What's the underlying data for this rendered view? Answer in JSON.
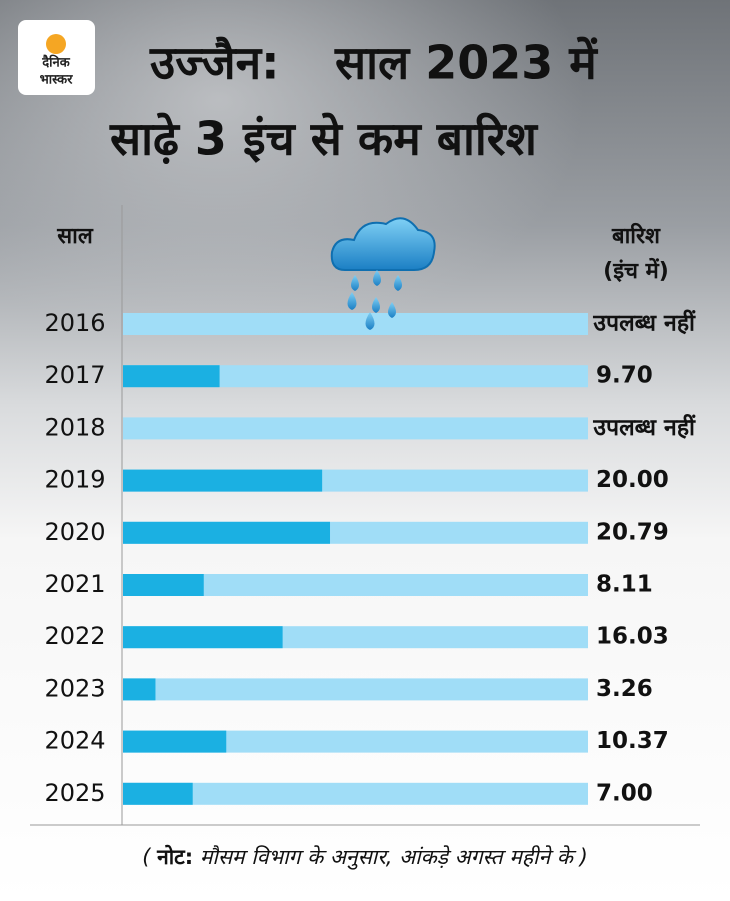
{
  "logo": [
    "दैनिक",
    "भास्कर"
  ],
  "chart_data": {
    "type": "bar",
    "orientation": "horizontal",
    "title": {
      "place": "उज्जैन:",
      "line1": "साल 2023 में",
      "line2": "साढ़े 3 इंच से कम बारिश"
    },
    "category_header": "साल",
    "value_header": [
      "बारिश",
      "(इंच में)"
    ],
    "categories": [
      "2016",
      "2017",
      "2018",
      "2019",
      "2020",
      "2021",
      "2022",
      "2023",
      "2024",
      "2025"
    ],
    "values": [
      null,
      9.7,
      null,
      20,
      20.79,
      8.11,
      16.03,
      3.26,
      10.37,
      7
    ],
    "value_labels": [
      "उपलब्ध नहीं",
      "9.70",
      "उपलब्ध नहीं",
      "20.00",
      "20.79",
      "8.11",
      "16.03",
      "3.26",
      "10.37",
      "7.00"
    ],
    "xlim": [
      0,
      46.7
    ],
    "color": "#1bb0e2",
    "track_color": "#a0ddf7",
    "title_color": "#1c8fd2",
    "note": {
      "label": "नोट:",
      "text": "मौसम विभाग के अनुसार, आंकड़े अगस्त महीने के"
    }
  }
}
